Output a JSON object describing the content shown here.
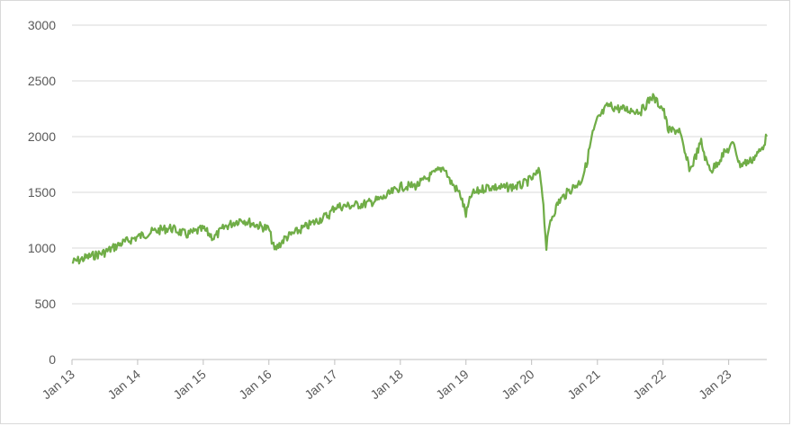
{
  "chart_data": {
    "type": "line",
    "title": "",
    "xlabel": "",
    "ylabel": "",
    "ylim": [
      0,
      3000
    ],
    "xlim": [
      "2013-01-01",
      "2023-08-01"
    ],
    "grid": true,
    "legend": "none",
    "y_ticks": [
      "0",
      "500",
      "1000",
      "1500",
      "2000",
      "2500",
      "3000"
    ],
    "x_ticks": [
      {
        "label": "Jan 13",
        "date": "2013-01-01"
      },
      {
        "label": "Jan 14",
        "date": "2014-01-01"
      },
      {
        "label": "Jan 15",
        "date": "2015-01-01"
      },
      {
        "label": "Jan 16",
        "date": "2016-01-01"
      },
      {
        "label": "Jan 17",
        "date": "2017-01-01"
      },
      {
        "label": "Jan 18",
        "date": "2018-01-01"
      },
      {
        "label": "Jan 19",
        "date": "2019-01-01"
      },
      {
        "label": "Jan 20",
        "date": "2020-01-01"
      },
      {
        "label": "Jan 21",
        "date": "2021-01-01"
      },
      {
        "label": "Jan 22",
        "date": "2022-01-01"
      },
      {
        "label": "Jan 23",
        "date": "2023-01-01"
      }
    ],
    "series": [
      {
        "color": "#70ad47",
        "points": [
          [
            "2013-01-01",
            870
          ],
          [
            "2013-04-01",
            920
          ],
          [
            "2013-07-01",
            960
          ],
          [
            "2013-10-01",
            1040
          ],
          [
            "2014-01-01",
            1100
          ],
          [
            "2014-04-01",
            1150
          ],
          [
            "2014-07-01",
            1180
          ],
          [
            "2014-10-01",
            1120
          ],
          [
            "2015-01-01",
            1170
          ],
          [
            "2015-03-01",
            1090
          ],
          [
            "2015-05-01",
            1190
          ],
          [
            "2015-08-01",
            1260
          ],
          [
            "2015-10-01",
            1220
          ],
          [
            "2016-01-01",
            1170
          ],
          [
            "2016-02-01",
            980
          ],
          [
            "2016-04-01",
            1090
          ],
          [
            "2016-07-01",
            1170
          ],
          [
            "2016-10-01",
            1250
          ],
          [
            "2016-12-01",
            1300
          ],
          [
            "2017-01-01",
            1370
          ],
          [
            "2017-04-01",
            1380
          ],
          [
            "2017-07-01",
            1400
          ],
          [
            "2017-10-01",
            1450
          ],
          [
            "2018-01-01",
            1550
          ],
          [
            "2018-04-01",
            1560
          ],
          [
            "2018-07-01",
            1660
          ],
          [
            "2018-09-01",
            1730
          ],
          [
            "2018-10-01",
            1610
          ],
          [
            "2018-12-01",
            1480
          ],
          [
            "2019-01-01",
            1300
          ],
          [
            "2019-02-01",
            1480
          ],
          [
            "2019-05-01",
            1550
          ],
          [
            "2019-08-01",
            1540
          ],
          [
            "2019-11-01",
            1560
          ],
          [
            "2020-01-01",
            1620
          ],
          [
            "2020-02-15",
            1690
          ],
          [
            "2020-03-01",
            1500
          ],
          [
            "2020-03-23",
            1000
          ],
          [
            "2020-04-15",
            1250
          ],
          [
            "2020-06-01",
            1420
          ],
          [
            "2020-08-01",
            1520
          ],
          [
            "2020-10-01",
            1600
          ],
          [
            "2020-11-01",
            1750
          ],
          [
            "2020-12-01",
            2000
          ],
          [
            "2021-01-01",
            2150
          ],
          [
            "2021-03-01",
            2280
          ],
          [
            "2021-05-01",
            2250
          ],
          [
            "2021-07-01",
            2240
          ],
          [
            "2021-09-01",
            2230
          ],
          [
            "2021-11-01",
            2360
          ],
          [
            "2022-01-01",
            2250
          ],
          [
            "2022-02-01",
            2050
          ],
          [
            "2022-04-01",
            2060
          ],
          [
            "2022-05-01",
            1850
          ],
          [
            "2022-06-01",
            1700
          ],
          [
            "2022-08-01",
            1950
          ],
          [
            "2022-09-01",
            1760
          ],
          [
            "2022-10-01",
            1700
          ],
          [
            "2022-12-01",
            1840
          ],
          [
            "2023-02-01",
            1940
          ],
          [
            "2023-03-01",
            1750
          ],
          [
            "2023-05-01",
            1780
          ],
          [
            "2023-07-01",
            1880
          ],
          [
            "2023-08-01",
            2000
          ]
        ]
      }
    ]
  }
}
